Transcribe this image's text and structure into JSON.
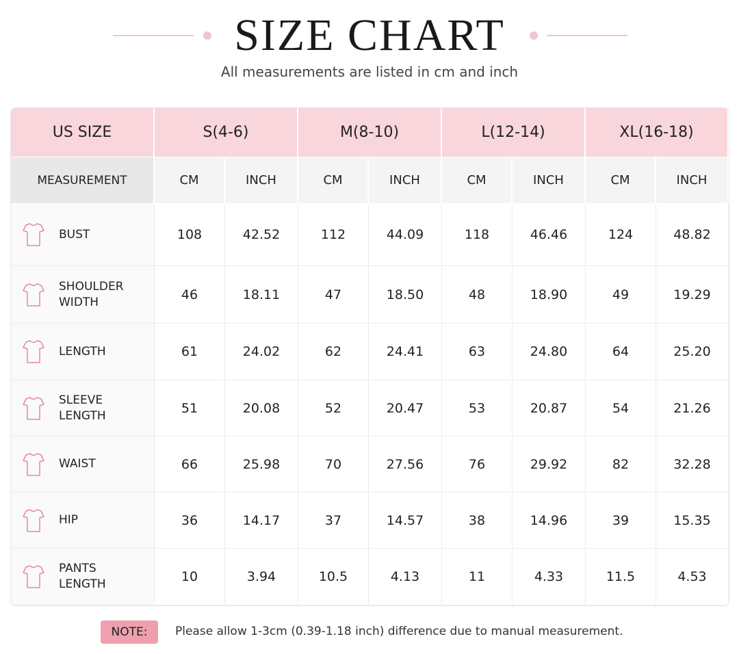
{
  "header": {
    "title": "SIZE CHART",
    "subtitle": "All measurements are listed in cm and inch"
  },
  "table": {
    "corner": "US SIZE",
    "sizes": [
      "S(4-6)",
      "M(8-10)",
      "L(12-14)",
      "XL(16-18)"
    ],
    "measurement_label": "MEASUREMENT",
    "units": [
      "CM",
      "INCH",
      "CM",
      "INCH",
      "CM",
      "INCH",
      "CM",
      "INCH"
    ],
    "rows": [
      {
        "label": "BUST",
        "values": [
          "108",
          "42.52",
          "112",
          "44.09",
          "118",
          "46.46",
          "124",
          "48.82"
        ]
      },
      {
        "label": "SHOULDER WIDTH",
        "values": [
          "46",
          "18.11",
          "47",
          "18.50",
          "48",
          "18.90",
          "49",
          "19.29"
        ]
      },
      {
        "label": "LENGTH",
        "values": [
          "61",
          "24.02",
          "62",
          "24.41",
          "63",
          "24.80",
          "64",
          "25.20"
        ]
      },
      {
        "label": "SLEEVE LENGTH",
        "values": [
          "51",
          "20.08",
          "52",
          "20.47",
          "53",
          "20.87",
          "54",
          "21.26"
        ]
      },
      {
        "label": "WAIST",
        "values": [
          "66",
          "25.98",
          "70",
          "27.56",
          "76",
          "29.92",
          "82",
          "32.28"
        ]
      },
      {
        "label": "HIP",
        "values": [
          "36",
          "14.17",
          "37",
          "14.57",
          "38",
          "14.96",
          "39",
          "15.35"
        ]
      },
      {
        "label": "PANTS LENGTH",
        "values": [
          "10",
          "3.94",
          "10.5",
          "4.13",
          "11",
          "4.33",
          "11.5",
          "4.53"
        ]
      }
    ]
  },
  "note": {
    "label": "NOTE:",
    "text": "Please allow 1-3cm (0.39-1.18 inch) difference due to manual measurement."
  }
}
